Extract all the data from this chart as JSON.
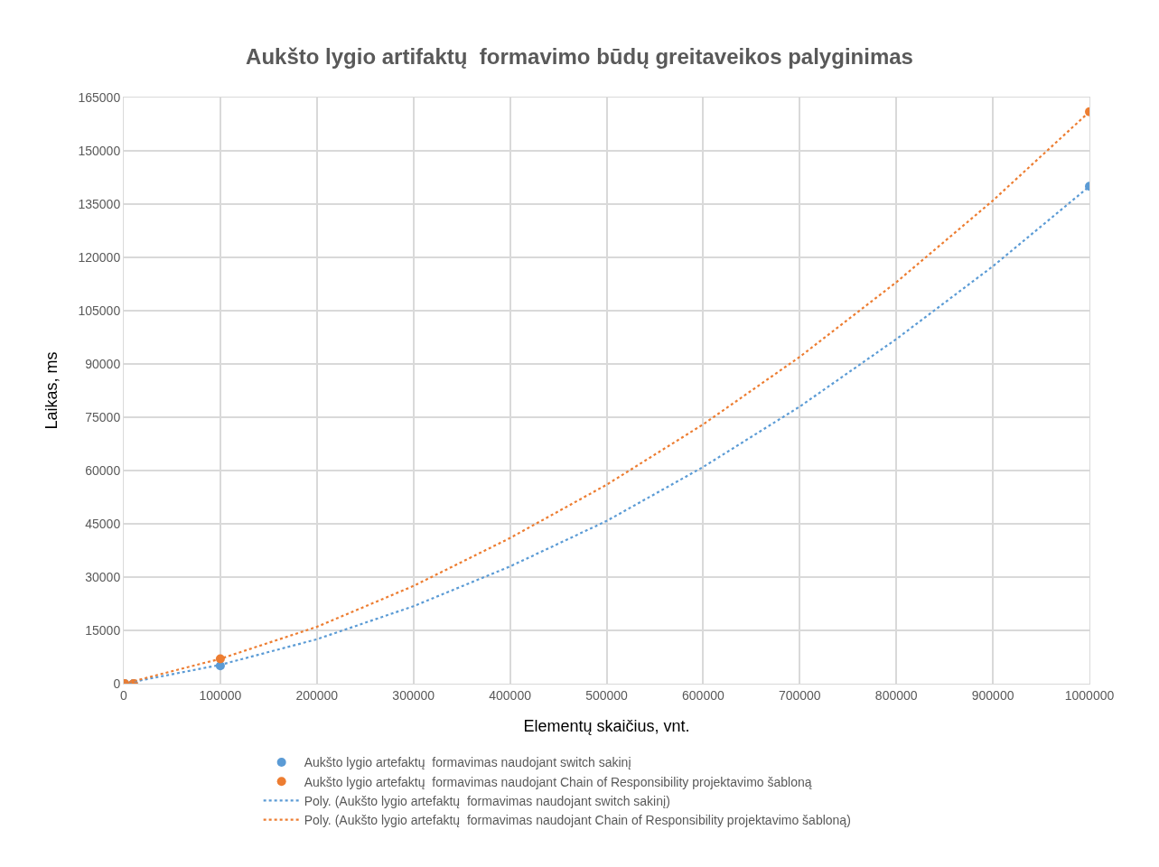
{
  "chart_data": {
    "type": "scatter",
    "title": "Aukšto lygio artifaktų  formavimo būdų greitaveikos palyginimas",
    "xlabel": "Elementų skaičius, vnt.",
    "ylabel": "Laikas, ms",
    "series": [
      {
        "name": "Aukšto lygio artefaktų  formavimas naudojant switch sakinį",
        "marker": "circle",
        "color": "#5b9bd5",
        "x": [
          1000,
          10000,
          100000,
          1000000
        ],
        "values": [
          0,
          0,
          5000,
          140000
        ]
      },
      {
        "name": "Aukšto lygio artefaktų  formavimas naudojant Chain of Responsibility projektavimo šabloną",
        "marker": "circle",
        "color": "#ed7d31",
        "x": [
          1000,
          10000,
          100000,
          1000000
        ],
        "values": [
          0,
          0,
          7000,
          161000
        ]
      },
      {
        "name": "Poly. (Aukšto lygio artefaktų  formavimas naudojant switch sakinį)",
        "type": "line",
        "marker": "none",
        "line_style": "dotted",
        "color": "#5b9bd5",
        "x": [
          0,
          100000,
          200000,
          300000,
          400000,
          500000,
          600000,
          700000,
          800000,
          900000,
          1000000
        ],
        "values": [
          0,
          5300,
          12500,
          21800,
          33000,
          45800,
          61000,
          78000,
          97000,
          117500,
          140000
        ]
      },
      {
        "name": "Poly. (Aukšto lygio artefaktų  formavimas naudojant Chain of Responsibility projektavimo šabloną)",
        "type": "line",
        "marker": "none",
        "line_style": "dotted",
        "color": "#ed7d31",
        "x": [
          0,
          100000,
          200000,
          300000,
          400000,
          500000,
          600000,
          700000,
          800000,
          900000,
          1000000
        ],
        "values": [
          0,
          7000,
          16000,
          27500,
          41000,
          56000,
          73000,
          92000,
          113000,
          136000,
          161000
        ]
      }
    ],
    "xlim": [
      0,
      1000000
    ],
    "xticks": [
      0,
      100000,
      200000,
      300000,
      400000,
      500000,
      600000,
      700000,
      800000,
      900000,
      1000000
    ],
    "ylim": [
      0,
      165000
    ],
    "yticks": [
      0,
      15000,
      30000,
      45000,
      60000,
      75000,
      90000,
      105000,
      120000,
      135000,
      150000,
      165000
    ],
    "grid": true,
    "legend": "bottom"
  }
}
